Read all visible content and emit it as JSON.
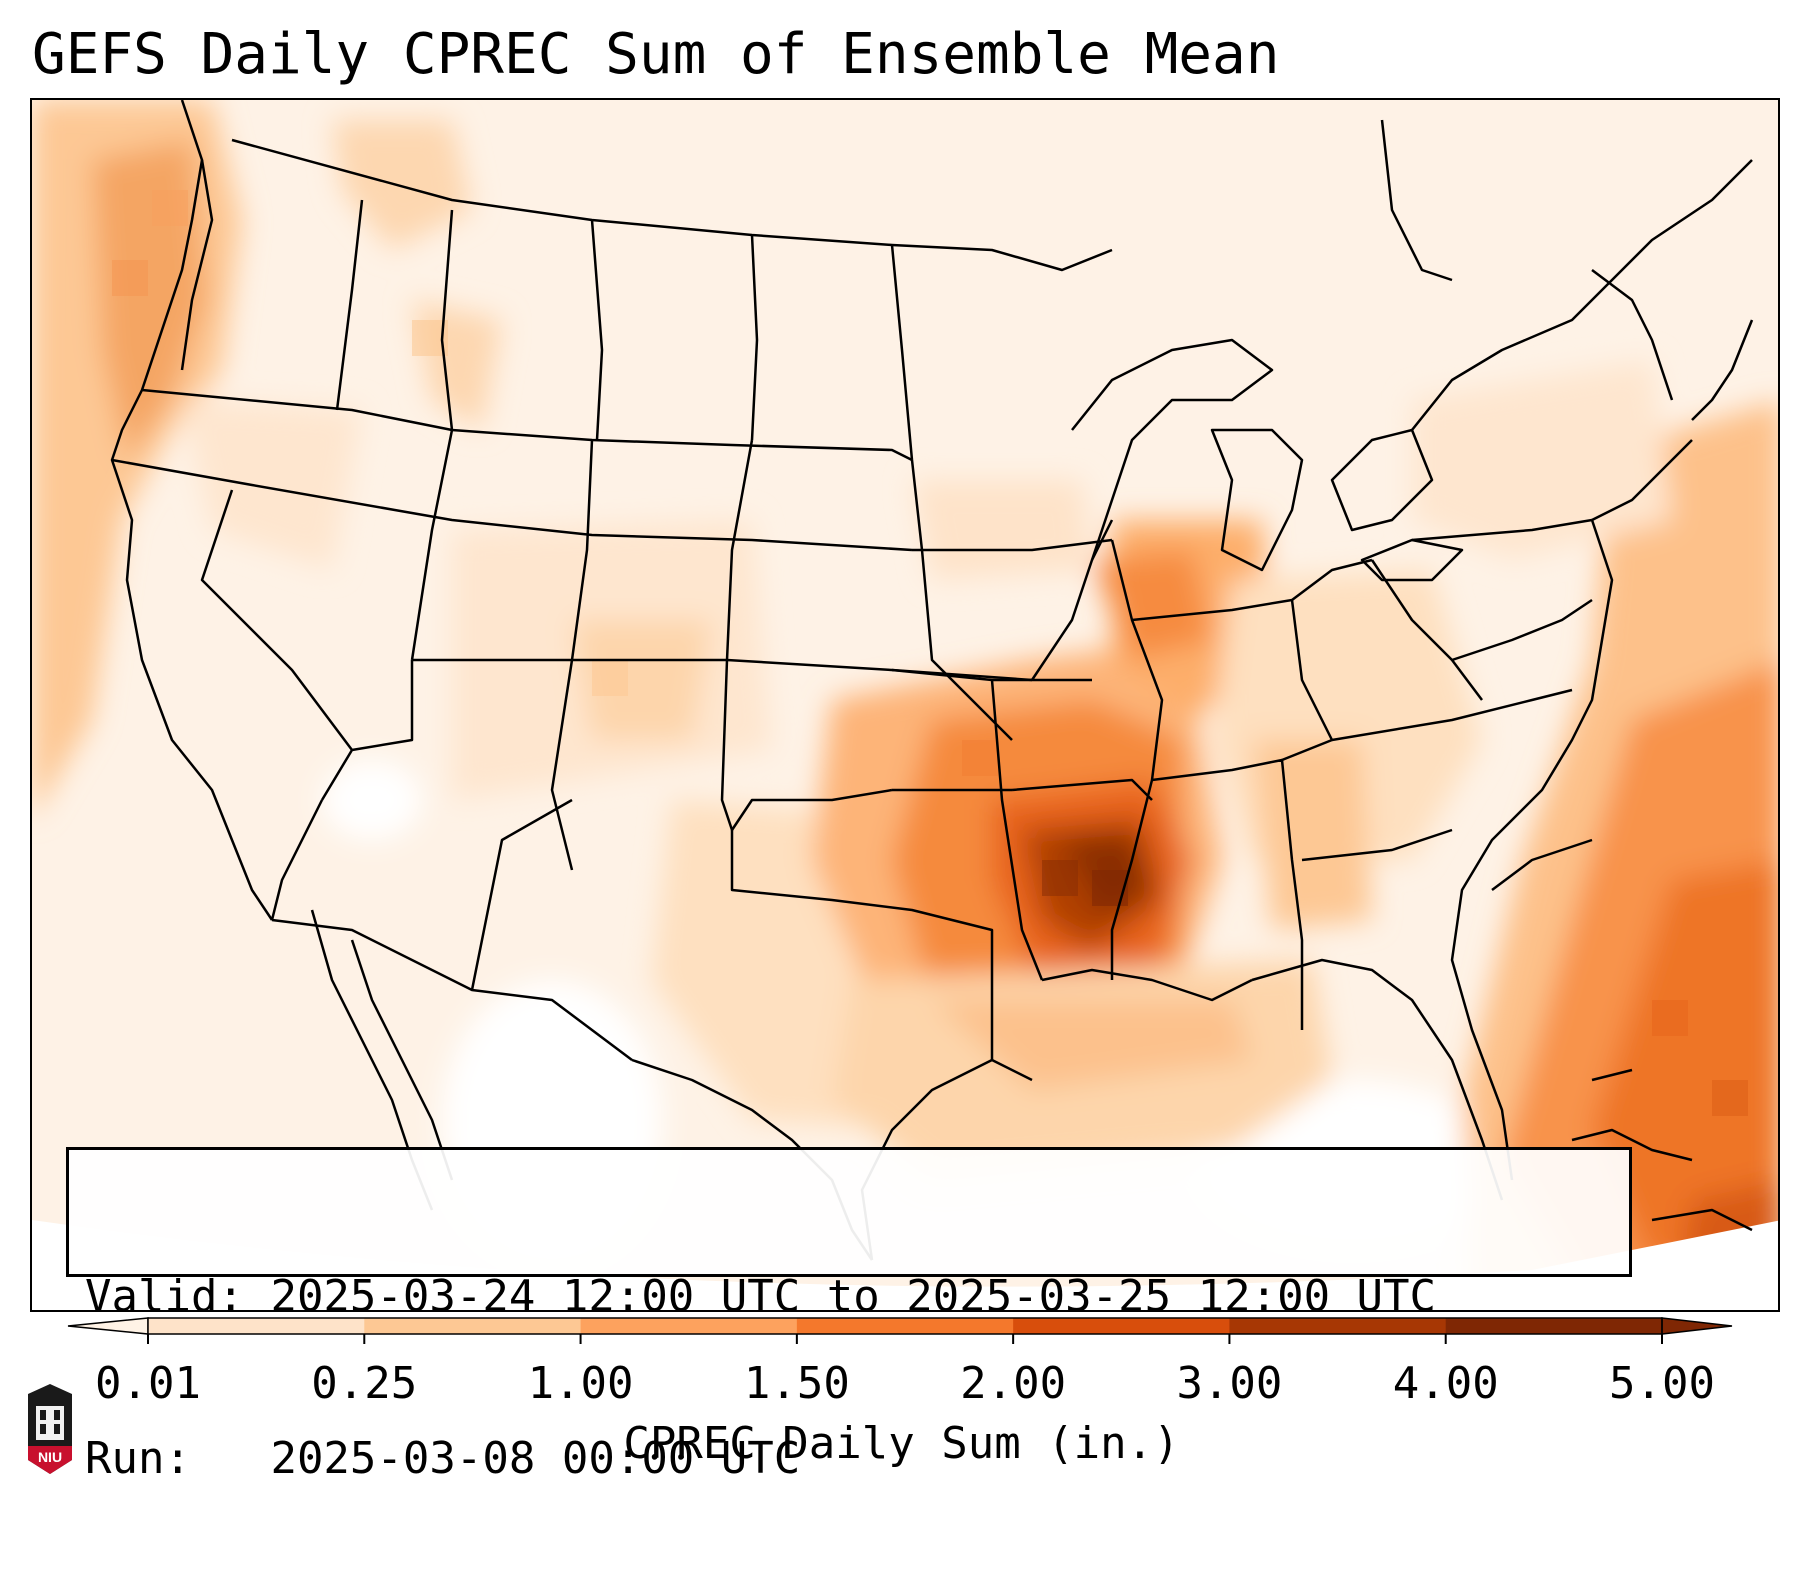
{
  "title": "GEFS Daily CPREC Sum of Ensemble Mean",
  "info_box": {
    "valid_label": "Valid:",
    "valid_text": "2025-03-24 12:00 UTC to 2025-03-25 12:00 UTC",
    "run_label": "Run:",
    "run_text": "2025-03-08 00:00 UTC"
  },
  "colorbar": {
    "label": "CPREC Daily Sum (in.)",
    "ticks": [
      "0.01",
      "0.25",
      "1.00",
      "1.50",
      "2.00",
      "3.00",
      "4.00",
      "5.00"
    ],
    "colors": [
      "#fff3e6",
      "#fee3c9",
      "#fdc894",
      "#fda25e",
      "#f4782c",
      "#d84e0c",
      "#a73704",
      "#7f2704"
    ],
    "extend": "both"
  },
  "logo": {
    "text": "NIU",
    "name": "niu-logo-icon"
  },
  "map": {
    "projection": "Lambert conformal CONUS",
    "max_region": "Mississippi / Arkansas / Louisiana"
  }
}
